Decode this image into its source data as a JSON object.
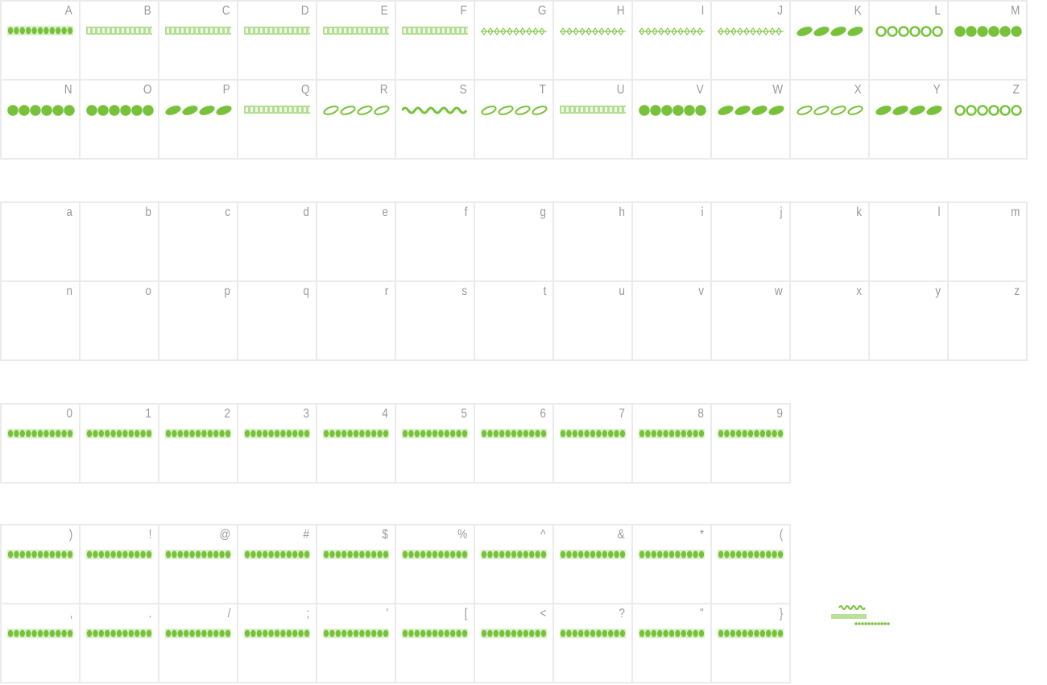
{
  "accent_color": "#77c23a",
  "border_color": "#ebebeb",
  "label_color": "#9a9a9a",
  "sections": [
    {
      "id": "upper",
      "has_glyphs": true,
      "rows": [
        [
          "A",
          "B",
          "C",
          "D",
          "E",
          "F",
          "G",
          "H",
          "I",
          "J",
          "K",
          "L",
          "M"
        ],
        [
          "N",
          "O",
          "P",
          "Q",
          "R",
          "S",
          "T",
          "U",
          "V",
          "W",
          "X",
          "Y",
          "Z"
        ]
      ],
      "glyph_styles": [
        [
          "beads",
          "grid",
          "grid",
          "ladder",
          "grid",
          "grid",
          "thin-ornament",
          "thin-ornament",
          "diamond-chain",
          "diamond-chain",
          "bold-braid",
          "loops",
          "stars"
        ],
        [
          "knot",
          "cups",
          "leaves",
          "links",
          "scrolls",
          "wave",
          "arrow-vine",
          "chain",
          "hearts",
          "swirls",
          "flourish",
          "ovals",
          "rings"
        ]
      ]
    },
    {
      "id": "lower",
      "has_glyphs": false,
      "rows": [
        [
          "a",
          "b",
          "c",
          "d",
          "e",
          "f",
          "g",
          "h",
          "i",
          "j",
          "k",
          "l",
          "m"
        ],
        [
          "n",
          "o",
          "p",
          "q",
          "r",
          "s",
          "t",
          "u",
          "v",
          "w",
          "x",
          "y",
          "z"
        ]
      ]
    },
    {
      "id": "digits",
      "has_glyphs": true,
      "rows": [
        [
          "0",
          "1",
          "2",
          "3",
          "4",
          "5",
          "6",
          "7",
          "8",
          "9"
        ]
      ]
    },
    {
      "id": "punct",
      "has_glyphs": true,
      "rows": [
        [
          ")",
          "!",
          "@",
          "#",
          "$",
          "%",
          "^",
          "&",
          "*",
          "("
        ],
        [
          ",",
          ".",
          "/",
          ";",
          "'",
          "[",
          "<",
          "?",
          "\"",
          "}"
        ]
      ]
    }
  ]
}
